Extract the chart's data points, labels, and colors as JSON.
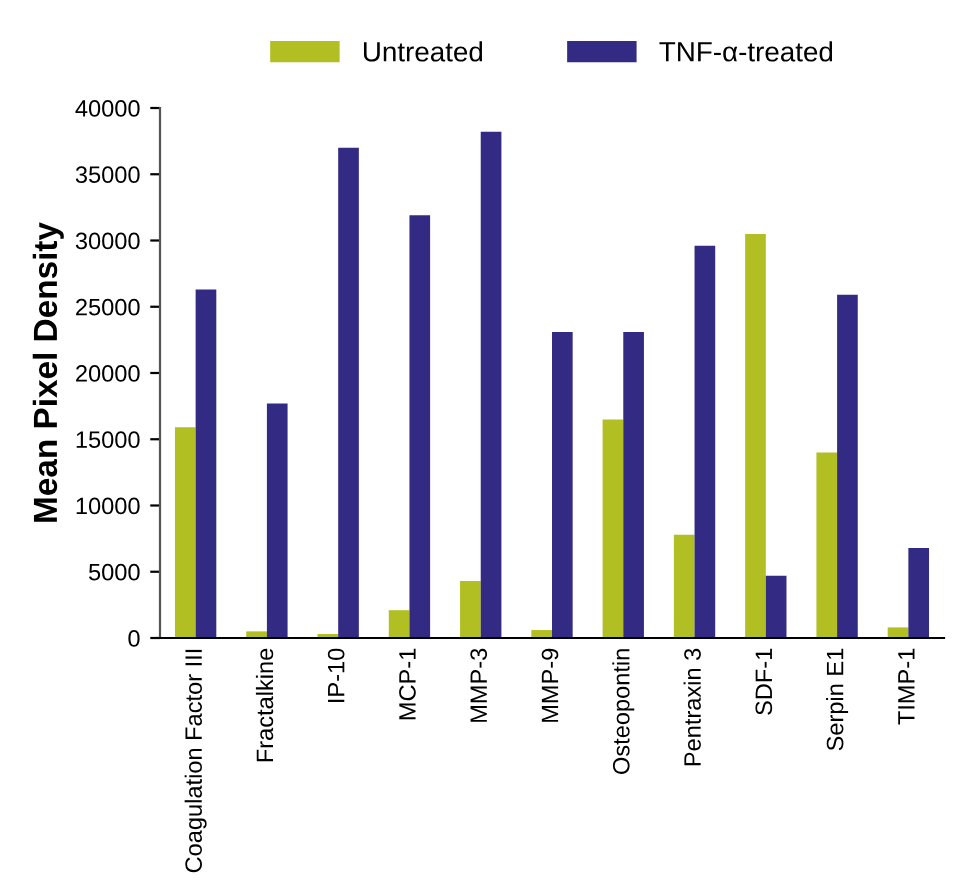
{
  "chart_data": {
    "type": "bar",
    "ylabel": "Mean Pixel Density",
    "categories": [
      "Coagulation Factor III",
      "Fractalkine",
      "IP-10",
      "MCP-1",
      "MMP-3",
      "MMP-9",
      "Osteopontin",
      "Pentraxin 3",
      "SDF-1",
      "Serpin E1",
      "TIMP-1"
    ],
    "series": [
      {
        "name": "Untreated",
        "color": "#b1bf23",
        "values": [
          15900,
          500,
          300,
          2100,
          4300,
          600,
          16500,
          7800,
          30500,
          14000,
          800
        ]
      },
      {
        "name": "TNF-α-treated",
        "color": "#332a83",
        "values": [
          26300,
          17700,
          37000,
          31900,
          38200,
          23100,
          23100,
          29600,
          4700,
          25900,
          6800
        ]
      }
    ],
    "ylim": [
      0,
      40000
    ],
    "yticks": [
      0,
      5000,
      10000,
      15000,
      20000,
      25000,
      30000,
      35000,
      40000
    ],
    "grid": false,
    "legend": "top"
  }
}
